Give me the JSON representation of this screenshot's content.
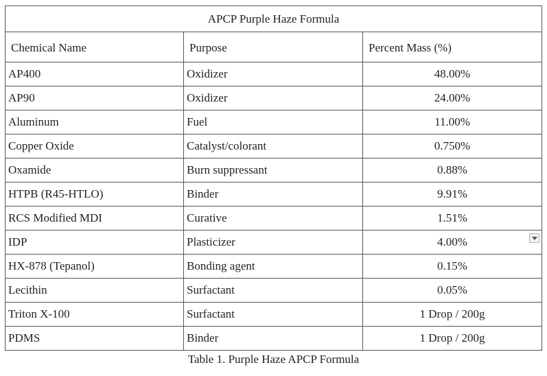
{
  "table": {
    "title": "APCP Purple Haze Formula",
    "headers": [
      "Chemical Name",
      "Purpose",
      "Percent Mass (%)"
    ],
    "rows": [
      [
        "AP400",
        "Oxidizer",
        "48.00%"
      ],
      [
        "AP90",
        "Oxidizer",
        "24.00%"
      ],
      [
        "Aluminum",
        "Fuel",
        "11.00%"
      ],
      [
        "Copper Oxide",
        "Catalyst/colorant",
        "0.750%"
      ],
      [
        "Oxamide",
        "Burn suppressant",
        "0.88%"
      ],
      [
        "HTPB (R45-HTLO)",
        "Binder",
        "9.91%"
      ],
      [
        "RCS Modified MDI",
        "Curative",
        "1.51%"
      ],
      [
        "IDP",
        "Plasticizer",
        "4.00%"
      ],
      [
        "HX-878 (Tepanol)",
        "Bonding agent",
        "0.15%"
      ],
      [
        "Lecithin",
        "Surfactant",
        "0.05%"
      ],
      [
        "Triton X-100",
        "Surfactant",
        "1 Drop / 200g"
      ],
      [
        "PDMS",
        "Binder",
        "1 Drop / 200g"
      ]
    ]
  },
  "caption": "Table 1. Purple Haze APCP Formula"
}
